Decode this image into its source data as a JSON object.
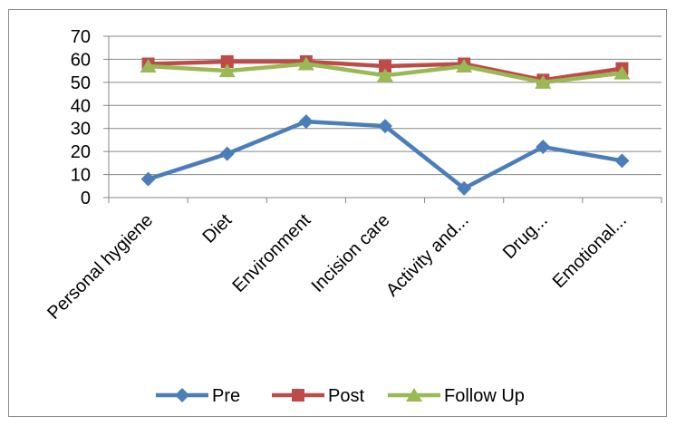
{
  "chart_data": {
    "type": "line",
    "title": "",
    "xlabel": "",
    "ylabel": "",
    "categories": [
      "Personal hygiene",
      "Diet",
      "Environment",
      "Incision care",
      "Activity and...",
      "Drug...",
      "Emotional..."
    ],
    "ylim": [
      0,
      70
    ],
    "yticks": [
      "0",
      "10",
      "20",
      "30",
      "40",
      "50",
      "60",
      "70"
    ],
    "grid": true,
    "legend_position": "bottom",
    "series": [
      {
        "name": "Pre",
        "values": [
          8,
          19,
          33,
          31,
          4,
          22,
          16
        ],
        "color": "#4a7ebb",
        "marker": "diamond"
      },
      {
        "name": "Post",
        "values": [
          58,
          59,
          59,
          57,
          58,
          51,
          56
        ],
        "color": "#be4b48",
        "marker": "square"
      },
      {
        "name": "Follow Up",
        "values": [
          57,
          55,
          58,
          53,
          57,
          50,
          54
        ],
        "color": "#98b954",
        "marker": "triangle"
      }
    ]
  }
}
